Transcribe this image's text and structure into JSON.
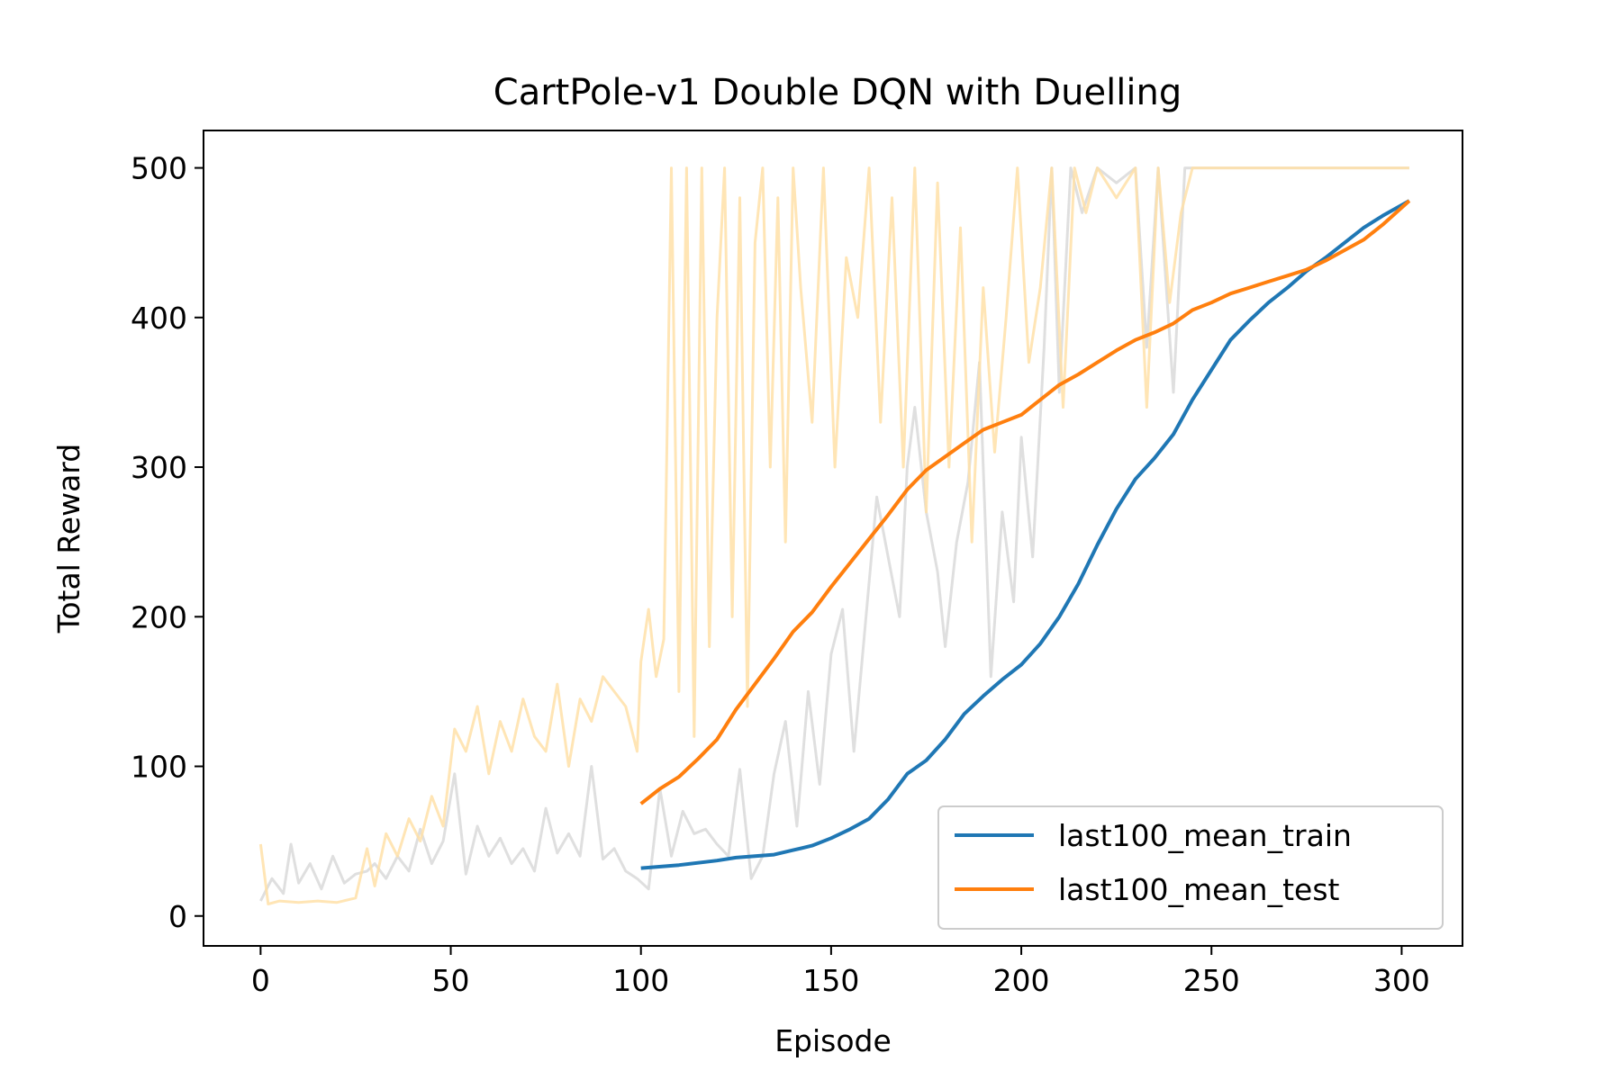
{
  "chart_data": {
    "type": "line",
    "title": "CartPole-v1 Double DQN with Duelling",
    "xlabel": "Episode",
    "ylabel": "Total Reward",
    "xlim": [
      -15,
      316
    ],
    "ylim": [
      -20,
      525
    ],
    "xticks": [
      0,
      50,
      100,
      150,
      200,
      250,
      300
    ],
    "yticks": [
      0,
      100,
      200,
      300,
      400,
      500
    ],
    "grid": false,
    "legend_position": "lower-right",
    "series": [
      {
        "name": "last100_mean_train",
        "color": "#1f77b4",
        "x": [
          100,
          110,
          120,
          125,
          130,
          135,
          140,
          145,
          150,
          155,
          160,
          165,
          170,
          175,
          180,
          185,
          190,
          195,
          200,
          205,
          210,
          215,
          220,
          225,
          230,
          235,
          240,
          245,
          250,
          255,
          260,
          265,
          270,
          275,
          280,
          285,
          290,
          295,
          302
        ],
        "y": [
          32,
          34,
          37,
          39,
          40,
          41,
          44,
          47,
          52,
          58,
          65,
          78,
          95,
          104,
          118,
          135,
          147,
          158,
          168,
          182,
          200,
          222,
          248,
          272,
          292,
          306,
          322,
          345,
          365,
          385,
          398,
          410,
          420,
          431,
          440,
          450,
          460,
          468,
          478
        ]
      },
      {
        "name": "last100_mean_test",
        "color": "#ff7f0e",
        "x": [
          100,
          105,
          110,
          115,
          120,
          125,
          130,
          135,
          140,
          145,
          150,
          155,
          160,
          165,
          170,
          175,
          180,
          185,
          190,
          195,
          200,
          205,
          210,
          215,
          220,
          225,
          230,
          235,
          240,
          245,
          250,
          255,
          260,
          265,
          270,
          275,
          280,
          285,
          290,
          295,
          302
        ],
        "y": [
          75,
          85,
          93,
          105,
          118,
          138,
          155,
          172,
          190,
          203,
          220,
          236,
          252,
          268,
          285,
          298,
          307,
          316,
          325,
          330,
          335,
          345,
          355,
          362,
          370,
          378,
          385,
          390,
          396,
          405,
          410,
          416,
          420,
          424,
          428,
          432,
          438,
          445,
          452,
          462,
          478
        ]
      }
    ],
    "background_series": [
      {
        "role": "per-episode train reward",
        "color": "#d9d9d9",
        "x": [
          0,
          3,
          6,
          8,
          10,
          13,
          16,
          19,
          22,
          25,
          28,
          30,
          33,
          36,
          39,
          42,
          45,
          48,
          51,
          54,
          57,
          60,
          63,
          66,
          69,
          72,
          75,
          78,
          81,
          84,
          87,
          90,
          93,
          96,
          99,
          102,
          105,
          108,
          111,
          114,
          117,
          120,
          123,
          126,
          129,
          132,
          135,
          138,
          141,
          144,
          147,
          150,
          153,
          156,
          159,
          162,
          165,
          168,
          170,
          172,
          175,
          178,
          180,
          183,
          186,
          189,
          192,
          195,
          198,
          200,
          203,
          206,
          208,
          210,
          213,
          216,
          220,
          225,
          230,
          233,
          236,
          240,
          243,
          246,
          250,
          255,
          260,
          265,
          270,
          275,
          280,
          285,
          290,
          295,
          299,
          302
        ],
        "y": [
          10,
          25,
          15,
          48,
          22,
          35,
          18,
          40,
          22,
          28,
          30,
          35,
          25,
          40,
          30,
          58,
          35,
          50,
          95,
          28,
          60,
          40,
          52,
          35,
          45,
          30,
          72,
          42,
          55,
          40,
          100,
          38,
          45,
          30,
          25,
          18,
          85,
          40,
          70,
          55,
          58,
          48,
          40,
          98,
          25,
          40,
          95,
          130,
          60,
          150,
          88,
          175,
          205,
          110,
          195,
          280,
          240,
          200,
          300,
          340,
          270,
          230,
          180,
          250,
          290,
          370,
          160,
          270,
          210,
          320,
          240,
          380,
          500,
          350,
          500,
          470,
          500,
          490,
          500,
          380,
          500,
          350,
          500,
          500,
          500,
          500,
          500,
          500,
          500,
          500,
          500,
          500,
          500,
          500,
          500,
          500
        ]
      },
      {
        "role": "per-episode test reward",
        "color": "#ffe0a8",
        "x": [
          0,
          2,
          5,
          10,
          15,
          20,
          25,
          28,
          30,
          33,
          36,
          39,
          42,
          45,
          48,
          51,
          54,
          57,
          60,
          63,
          66,
          69,
          72,
          75,
          78,
          81,
          84,
          87,
          90,
          93,
          96,
          99,
          100,
          102,
          104,
          106,
          108,
          110,
          112,
          114,
          116,
          118,
          120,
          122,
          124,
          126,
          128,
          130,
          132,
          134,
          136,
          138,
          140,
          142,
          145,
          148,
          151,
          154,
          157,
          160,
          163,
          166,
          169,
          172,
          175,
          178,
          181,
          184,
          187,
          190,
          193,
          196,
          199,
          202,
          205,
          208,
          211,
          214,
          217,
          220,
          225,
          230,
          233,
          236,
          239,
          242,
          245,
          250,
          260,
          270,
          280,
          290,
          300,
          302
        ],
        "y": [
          48,
          8,
          10,
          9,
          10,
          9,
          12,
          45,
          20,
          55,
          40,
          65,
          50,
          80,
          60,
          125,
          110,
          140,
          95,
          130,
          110,
          145,
          120,
          110,
          155,
          100,
          145,
          130,
          160,
          150,
          140,
          110,
          170,
          205,
          160,
          185,
          500,
          150,
          500,
          120,
          500,
          180,
          400,
          500,
          200,
          480,
          140,
          450,
          500,
          300,
          480,
          250,
          500,
          420,
          330,
          500,
          300,
          440,
          400,
          500,
          330,
          480,
          300,
          500,
          270,
          490,
          300,
          460,
          250,
          420,
          310,
          400,
          500,
          370,
          420,
          500,
          340,
          500,
          470,
          500,
          480,
          500,
          340,
          500,
          410,
          470,
          500,
          500,
          500,
          500,
          500,
          500,
          500,
          500
        ]
      }
    ]
  }
}
